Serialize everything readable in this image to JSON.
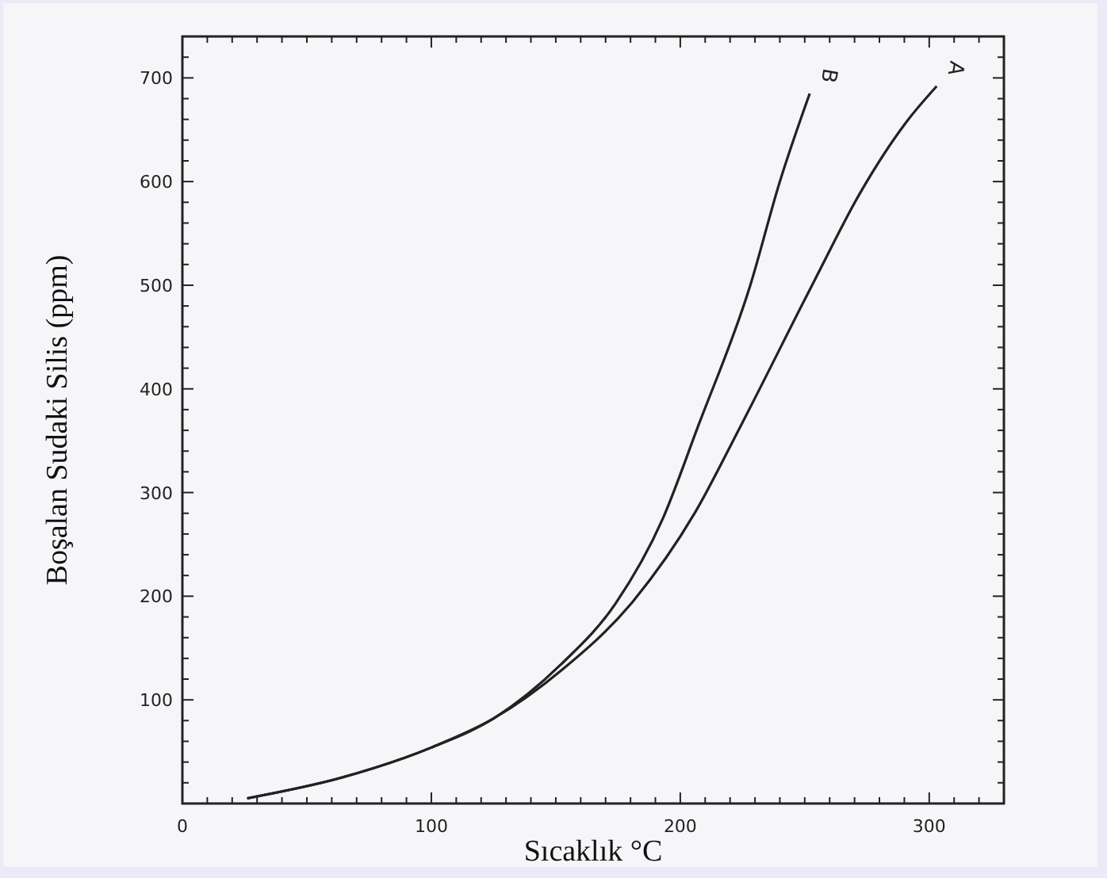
{
  "chart_data": {
    "type": "line",
    "xlabel": "Sıcaklık °C",
    "ylabel": "Boşalan Sudaki Silis (ppm)",
    "xlim": [
      0,
      330
    ],
    "ylim": [
      0,
      740
    ],
    "xticks": [
      0,
      {
        "value": 10,
        "label": null
      },
      {
        "value": 20,
        "label": null
      },
      {
        "value": 30,
        "label": null
      },
      {
        "value": 40,
        "label": null
      },
      {
        "value": 50,
        "label": null
      },
      {
        "value": 60,
        "label": null
      },
      {
        "value": 70,
        "label": null
      },
      {
        "value": 80,
        "label": null
      },
      {
        "value": 90,
        "label": null
      },
      100,
      {
        "value": 110,
        "label": null
      },
      {
        "value": 120,
        "label": null
      },
      {
        "value": 130,
        "label": null
      },
      {
        "value": 140,
        "label": null
      },
      {
        "value": 150,
        "label": null
      },
      {
        "value": 160,
        "label": null
      },
      {
        "value": 170,
        "label": null
      },
      {
        "value": 180,
        "label": null
      },
      {
        "value": 190,
        "label": null
      },
      200,
      {
        "value": 210,
        "label": null
      },
      {
        "value": 220,
        "label": null
      },
      {
        "value": 230,
        "label": null
      },
      {
        "value": 240,
        "label": null
      },
      {
        "value": 250,
        "label": null
      },
      {
        "value": 260,
        "label": null
      },
      {
        "value": 270,
        "label": null
      },
      {
        "value": 280,
        "label": null
      },
      {
        "value": 290,
        "label": null
      },
      300,
      {
        "value": 310,
        "label": null
      },
      {
        "value": 320,
        "label": null
      }
    ],
    "yticks": [
      {
        "value": 0,
        "label": null
      },
      {
        "value": 20,
        "label": null
      },
      {
        "value": 40,
        "label": null
      },
      {
        "value": 60,
        "label": null
      },
      {
        "value": 80,
        "label": null
      },
      100,
      {
        "value": 120,
        "label": null
      },
      {
        "value": 140,
        "label": null
      },
      {
        "value": 160,
        "label": null
      },
      {
        "value": 180,
        "label": null
      },
      200,
      {
        "value": 220,
        "label": null
      },
      {
        "value": 240,
        "label": null
      },
      {
        "value": 260,
        "label": null
      },
      {
        "value": 280,
        "label": null
      },
      300,
      {
        "value": 320,
        "label": null
      },
      {
        "value": 340,
        "label": null
      },
      {
        "value": 360,
        "label": null
      },
      {
        "value": 380,
        "label": null
      },
      400,
      {
        "value": 420,
        "label": null
      },
      {
        "value": 440,
        "label": null
      },
      {
        "value": 460,
        "label": null
      },
      {
        "value": 480,
        "label": null
      },
      500,
      {
        "value": 520,
        "label": null
      },
      {
        "value": 540,
        "label": null
      },
      {
        "value": 560,
        "label": null
      },
      {
        "value": 580,
        "label": null
      },
      600,
      {
        "value": 620,
        "label": null
      },
      {
        "value": 640,
        "label": null
      },
      {
        "value": 660,
        "label": null
      },
      {
        "value": 680,
        "label": null
      },
      700,
      {
        "value": 720,
        "label": null
      }
    ],
    "grid": false,
    "legend": "top right",
    "marker": "none",
    "line_style": "solid",
    "series": [
      {
        "name": "A",
        "color": "#222222",
        "x": [
          26,
          64,
          100,
          125,
          152,
          181,
          206,
          224,
          254,
          272,
          291,
          303
        ],
        "values": [
          5,
          25,
          54,
          82,
          128,
          195,
          281,
          363,
          505,
          588,
          658,
          692
        ]
      },
      {
        "name": "B",
        "color": "#222222",
        "x": [
          26,
          64,
          100,
          125,
          152,
          174,
          193,
          207,
          228,
          240,
          252
        ],
        "values": [
          5,
          25,
          54,
          82,
          134,
          193,
          275,
          363,
          499,
          600,
          685
        ]
      }
    ]
  }
}
